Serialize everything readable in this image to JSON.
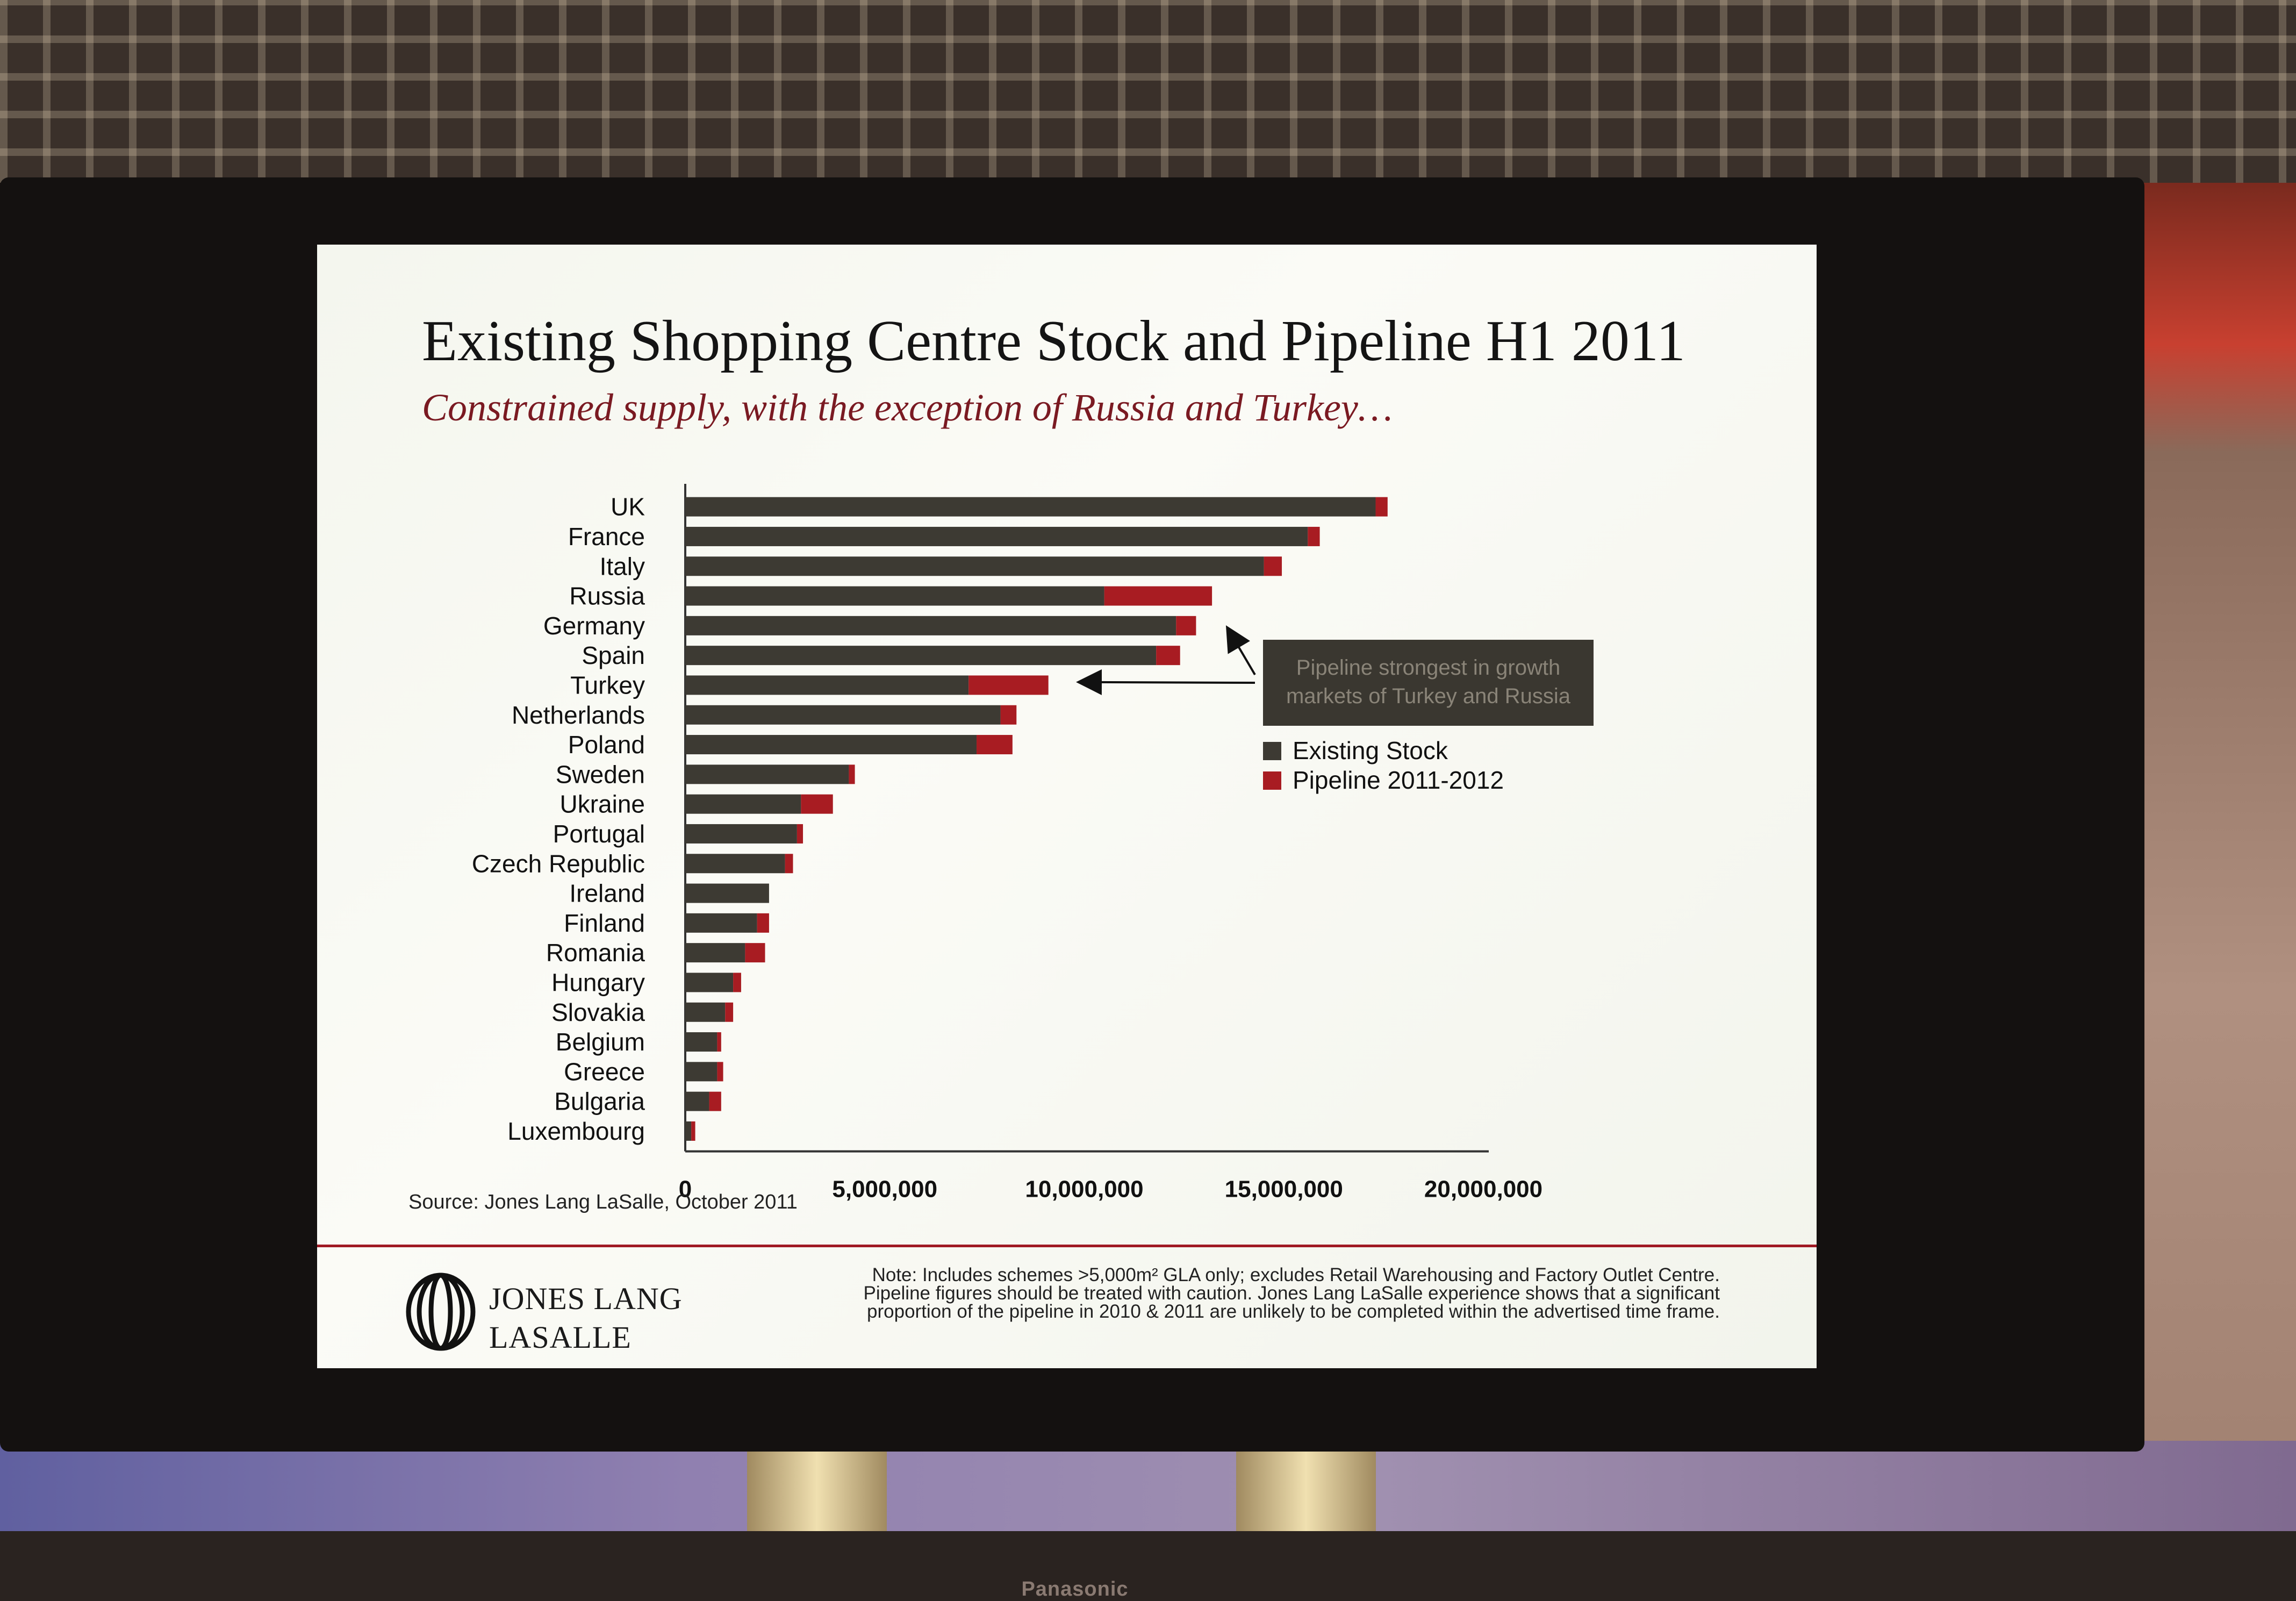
{
  "slide": {
    "title": "Existing Shopping Centre Stock and Pipeline H1 2011",
    "subtitle": "Constrained supply, with the exception of Russia and Turkey…",
    "source": "Source: Jones Lang LaSalle, October 2011",
    "logo_line1": "JONES LANG",
    "logo_line2": "LASALLE",
    "note": "Note: Includes schemes >5,000m² GLA only; excludes Retail Warehousing and Factory Outlet Centre. Pipeline figures should be treated with caution. Jones Lang LaSalle experience shows that a significant proportion of the pipeline in 2010 & 2011 are unlikely to be completed within the advertised time frame.",
    "monitor_brand": "Panasonic"
  },
  "chart_data": {
    "type": "bar",
    "orientation": "horizontal",
    "stacked": true,
    "categories": [
      "UK",
      "France",
      "Italy",
      "Russia",
      "Germany",
      "Spain",
      "Turkey",
      "Netherlands",
      "Poland",
      "Sweden",
      "Ukraine",
      "Portugal",
      "Czech Republic",
      "Ireland",
      "Finland",
      "Romania",
      "Hungary",
      "Slovakia",
      "Belgium",
      "Greece",
      "Bulgaria",
      "Luxembourg"
    ],
    "series": [
      {
        "name": "Existing Stock",
        "color": "#3d3a33",
        "values": [
          17300000,
          15600000,
          14500000,
          10500000,
          12300000,
          11800000,
          7100000,
          7900000,
          7300000,
          4100000,
          2900000,
          2800000,
          2500000,
          2100000,
          1800000,
          1500000,
          1200000,
          1000000,
          800000,
          800000,
          600000,
          150000
        ]
      },
      {
        "name": "Pipeline 2011-2012",
        "color": "#a81c22",
        "values": [
          300000,
          300000,
          450000,
          2700000,
          500000,
          600000,
          2000000,
          400000,
          900000,
          150000,
          800000,
          150000,
          200000,
          0,
          300000,
          500000,
          200000,
          200000,
          100000,
          150000,
          300000,
          100000
        ]
      }
    ],
    "x_ticks": [
      "0",
      "5,000,000",
      "10,000,000",
      "15,000,000",
      "20,000,000"
    ],
    "xlim": [
      0,
      20000000
    ],
    "grid": false,
    "legend_placement": "right",
    "annotation": "Pipeline strongest in growth markets of Turkey and Russia"
  }
}
